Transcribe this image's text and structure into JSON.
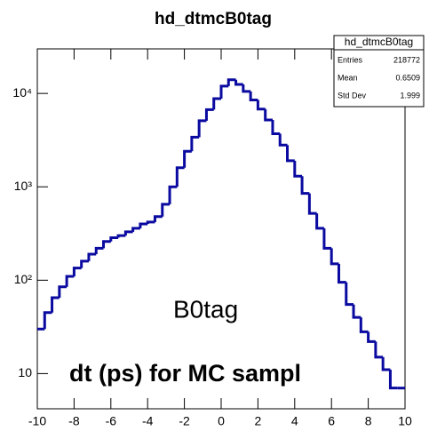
{
  "chart_data": {
    "type": "histogram",
    "title": "hd_dtmcB0tag",
    "bins": [
      -10,
      -9.6,
      -9.2,
      -8.8,
      -8.4,
      -8,
      -7.6,
      -7.2,
      -6.8,
      -6.4,
      -6,
      -5.6,
      -5.2,
      -4.8,
      -4.4,
      -4,
      -3.6,
      -3.2,
      -2.8,
      -2.4,
      -2,
      -1.6,
      -1.2,
      -0.8,
      -0.4,
      0,
      0.4,
      0.8,
      1.2,
      1.6,
      2,
      2.4,
      2.8,
      3.2,
      3.6,
      4,
      4.4,
      4.8,
      5.2,
      5.6,
      6,
      6.4,
      6.8,
      7.2,
      7.6,
      8,
      8.4,
      8.8,
      9.2,
      9.6,
      10
    ],
    "values": [
      30,
      45,
      65,
      85,
      110,
      135,
      160,
      190,
      220,
      260,
      285,
      300,
      330,
      360,
      400,
      420,
      480,
      650,
      1000,
      1600,
      2400,
      3400,
      5100,
      6700,
      8800,
      12000,
      14000,
      12500,
      10500,
      8500,
      6800,
      5200,
      3700,
      2800,
      1900,
      1300,
      850,
      520,
      360,
      220,
      150,
      95,
      55,
      40,
      28,
      22,
      15,
      11,
      7,
      7
    ],
    "color": "#0a0aa0",
    "xlim": [
      -10,
      10
    ],
    "xticks": [
      -10,
      -8,
      -6,
      -4,
      -2,
      0,
      2,
      4,
      6,
      8,
      10
    ],
    "ylim": [
      4.2,
      30000
    ],
    "yticks": [
      10,
      {
        "value": 100,
        "label": "10²"
      },
      {
        "value": 1000,
        "label": "10³"
      },
      {
        "value": 10000,
        "label": "10⁴"
      }
    ],
    "log_y": true,
    "stats": {
      "name": "hd_dtmcB0tag",
      "rows": [
        [
          "Entries",
          218772
        ],
        [
          "Mean",
          0.6509
        ],
        [
          "Std Dev",
          1.999
        ]
      ]
    },
    "annotations": [
      "B0tag",
      "dt (ps) for MC sampl"
    ]
  }
}
